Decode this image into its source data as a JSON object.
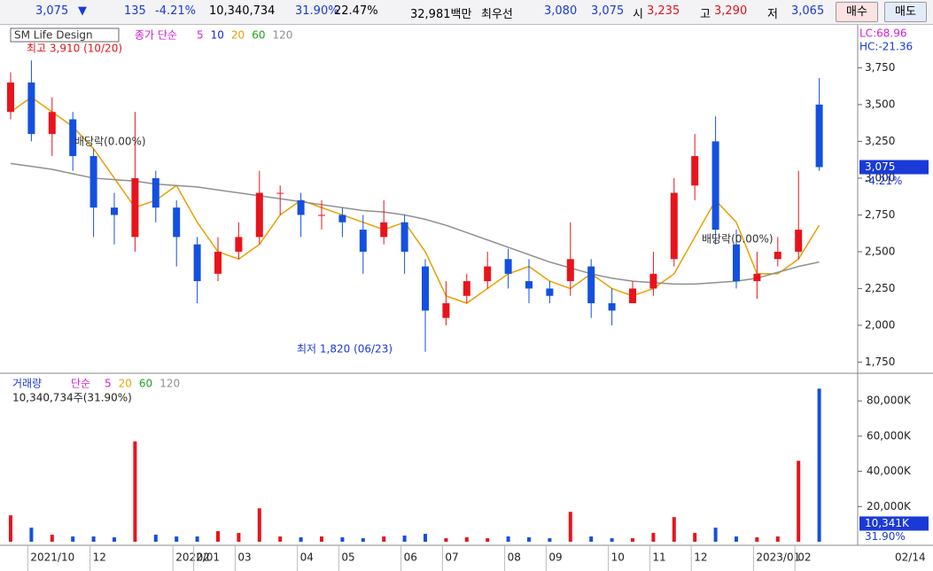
{
  "header": {
    "price": "3,075",
    "arrow": "▼",
    "change": "135",
    "change_pct": "-4.21%",
    "volume": "10,340,734",
    "turnover": "31.90%",
    "rate": "22.47%",
    "amount": "32,981백만",
    "best_label": "최우선",
    "best_ask": "3,080",
    "best_bid": "3,075",
    "open_label": "시",
    "open": "3,235",
    "high_label": "고",
    "high": "3,290",
    "low_label": "저",
    "low": "3,065",
    "buy": "매수",
    "sell": "매도"
  },
  "chart_data": [
    {
      "type": "candlestick",
      "title": "SM Life Design",
      "legend_label": "종가 단순",
      "legend": [
        {
          "name": "5",
          "color": "#d020d0"
        },
        {
          "name": "10",
          "color": "#2020e0"
        },
        {
          "name": "20",
          "color": "#e8a000"
        },
        {
          "name": "60",
          "color": "#20a020"
        },
        {
          "name": "120",
          "color": "#909090"
        }
      ],
      "up_color": "#e8141c",
      "down_color": "#1450e0",
      "open": [
        3450,
        3650,
        3300,
        3400,
        3150,
        2800,
        2600,
        3000,
        2800,
        2550,
        2350,
        2500,
        2600,
        2900,
        2850,
        2750,
        2750,
        2650,
        2600,
        2700,
        2400,
        2050,
        2200,
        2300,
        2450,
        2300,
        2250,
        2300,
        2400,
        2150,
        2150,
        2250,
        2450,
        2950,
        3250,
        2550,
        2300,
        2450,
        2500,
        3500
      ],
      "high": [
        3720,
        3800,
        3550,
        3450,
        3200,
        2900,
        3450,
        3050,
        2850,
        2600,
        2600,
        2700,
        3050,
        2950,
        2900,
        2850,
        2800,
        2750,
        2850,
        2750,
        2450,
        2300,
        2350,
        2500,
        2520,
        2450,
        2300,
        2700,
        2450,
        2250,
        2300,
        2500,
        3000,
        3300,
        3420,
        2650,
        2500,
        2600,
        3050,
        3680
      ],
      "low": [
        3400,
        3250,
        3150,
        3050,
        2600,
        2550,
        2500,
        2700,
        2400,
        2150,
        2300,
        2450,
        2550,
        2750,
        2600,
        2650,
        2600,
        2350,
        2550,
        2350,
        1820,
        2000,
        2150,
        2250,
        2250,
        2150,
        2150,
        2200,
        2050,
        2000,
        2150,
        2200,
        2400,
        2850,
        2550,
        2250,
        2180,
        2400,
        2450,
        3050
      ],
      "close": [
        3650,
        3300,
        3450,
        3150,
        2800,
        2750,
        3000,
        2800,
        2600,
        2300,
        2500,
        2600,
        2900,
        2900,
        2750,
        2750,
        2700,
        2500,
        2700,
        2500,
        2100,
        2150,
        2300,
        2400,
        2350,
        2250,
        2200,
        2450,
        2150,
        2100,
        2250,
        2350,
        2900,
        3150,
        2650,
        2300,
        2350,
        2500,
        2650,
        3075
      ],
      "series": [
        {
          "color": "#e8a000",
          "values": [
            3450,
            3550,
            3450,
            3350,
            3200,
            3000,
            2800,
            2850,
            2950,
            2700,
            2500,
            2450,
            2550,
            2750,
            2850,
            2800,
            2750,
            2700,
            2650,
            2700,
            2500,
            2200,
            2150,
            2250,
            2350,
            2400,
            2300,
            2250,
            2350,
            2250,
            2200,
            2250,
            2350,
            2600,
            2850,
            2700,
            2350,
            2350,
            2450,
            2680
          ]
        },
        {
          "color": "#909090",
          "values": [
            3100,
            3080,
            3060,
            3030,
            3000,
            2990,
            2980,
            2960,
            2950,
            2940,
            2920,
            2900,
            2880,
            2860,
            2840,
            2820,
            2800,
            2780,
            2770,
            2750,
            2720,
            2680,
            2630,
            2580,
            2530,
            2480,
            2430,
            2390,
            2350,
            2320,
            2300,
            2290,
            2280,
            2280,
            2290,
            2300,
            2320,
            2360,
            2400,
            2430
          ]
        }
      ],
      "ylim": [
        1680,
        4030
      ],
      "yticks": [
        {
          "value": 1750,
          "label": "1,750"
        },
        {
          "value": 2000,
          "label": "2,000"
        },
        {
          "value": 2250,
          "label": "2,250"
        },
        {
          "value": 2500,
          "label": "2,500"
        },
        {
          "value": 2750,
          "label": "2,750"
        },
        {
          "value": 3000,
          "label": "3,000"
        },
        {
          "value": 3250,
          "label": "3,250"
        },
        {
          "value": 3500,
          "label": "3,500"
        },
        {
          "value": 3750,
          "label": "3,750"
        }
      ],
      "xlabels": [
        {
          "value": 1,
          "label": "2021/10"
        },
        {
          "value": 4,
          "label": "12"
        },
        {
          "value": 8,
          "label": "2022/01"
        },
        {
          "value": 9,
          "label": "02"
        },
        {
          "value": 11,
          "label": "03"
        },
        {
          "value": 14,
          "label": "04"
        },
        {
          "value": 16,
          "label": "05"
        },
        {
          "value": 19,
          "label": "06"
        },
        {
          "value": 21,
          "label": "07"
        },
        {
          "value": 24,
          "label": "08"
        },
        {
          "value": 26,
          "label": "09"
        },
        {
          "value": 29,
          "label": "10"
        },
        {
          "value": 31,
          "label": "11"
        },
        {
          "value": 33,
          "label": "12"
        },
        {
          "value": 36,
          "label": "2023/01"
        },
        {
          "value": 38,
          "label": "02"
        }
      ],
      "last_date": "02/14",
      "annotations": [
        "최고 3,910 (10/20)",
        "배당락(0.00%)",
        "배당락(0.00%)",
        "최저 1,820 (06/23)"
      ],
      "lc": "LC:68.96",
      "hc": "HC:-21.36",
      "last_price": {
        "value": 3075,
        "label": "3,075"
      },
      "last_change": "-4.21%"
    },
    {
      "type": "bar",
      "title": "거래량",
      "legend_label": "단순",
      "legend": [
        {
          "name": "5",
          "color": "#d020d0"
        },
        {
          "name": "20",
          "color": "#e8a000"
        },
        {
          "name": "60",
          "color": "#20a020"
        },
        {
          "name": "120",
          "color": "#909090"
        }
      ],
      "values": [
        15000,
        8000,
        4000,
        3000,
        3000,
        2500,
        57000,
        4000,
        3000,
        3000,
        6000,
        5000,
        19000,
        3000,
        2500,
        3000,
        2500,
        2000,
        3000,
        3500,
        4500,
        2000,
        2500,
        2000,
        3000,
        2500,
        2000,
        17000,
        3000,
        2000,
        2000,
        5000,
        14000,
        5000,
        8000,
        3000,
        2500,
        3000,
        46000,
        87000
      ],
      "ylim": [
        0,
        93700
      ],
      "yticks": [
        {
          "value": 20000,
          "label": "20,000K"
        },
        {
          "value": 40000,
          "label": "40,000K"
        },
        {
          "value": 60000,
          "label": "60,000K"
        },
        {
          "value": 80000,
          "label": "80,000K"
        }
      ],
      "summary": "10,340,734주(31.90%)",
      "last": {
        "value": 10341,
        "label": "10,341K"
      },
      "last_pct": "31.90%"
    }
  ]
}
